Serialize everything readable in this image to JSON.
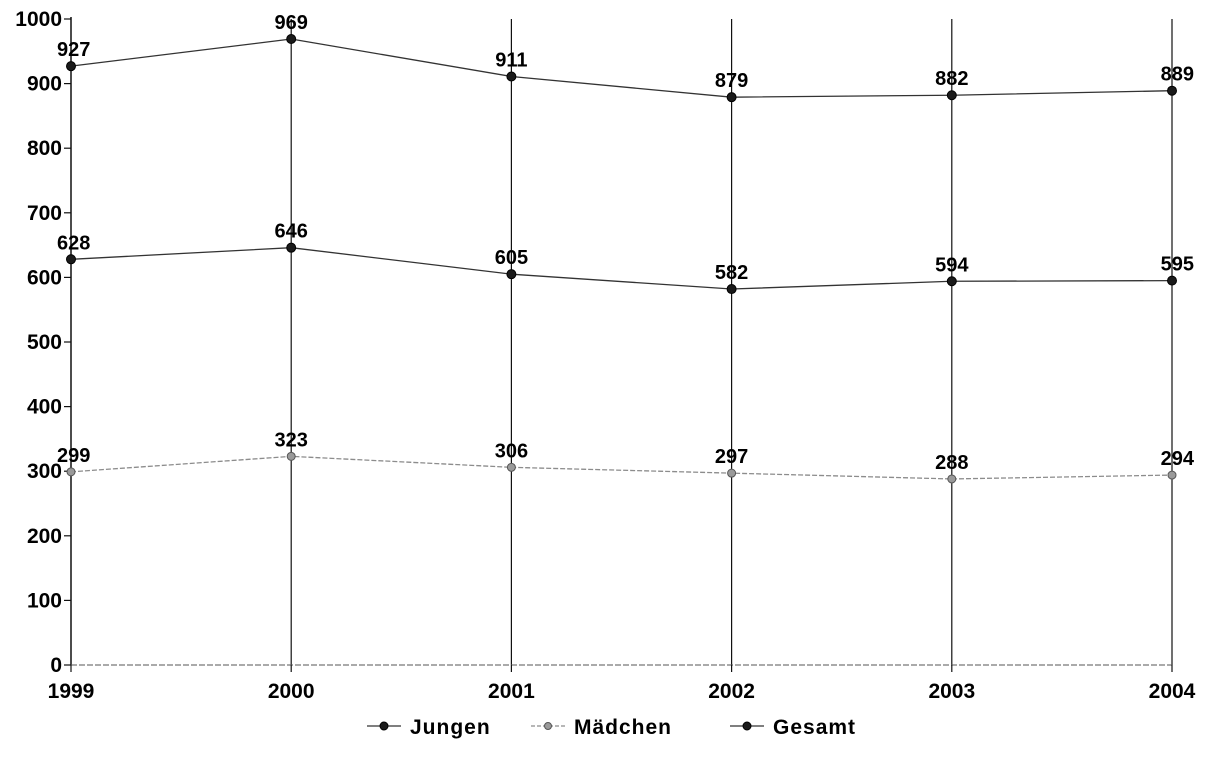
{
  "chart_data": {
    "type": "line",
    "title": "",
    "xlabel": "",
    "ylabel": "",
    "categories": [
      "1999",
      "2000",
      "2001",
      "2002",
      "2003",
      "2004"
    ],
    "ylim": [
      0,
      1000
    ],
    "y_ticks": [
      "0",
      "100",
      "200",
      "300",
      "400",
      "500",
      "600",
      "700",
      "800",
      "900",
      "1000"
    ],
    "grid": "vertical",
    "legend_position": "bottom-center",
    "series": [
      {
        "name": "Jungen",
        "values": [
          628,
          646,
          605,
          582,
          594,
          595
        ],
        "labels": [
          "628",
          "646",
          "605",
          "582",
          "594",
          "595"
        ],
        "color": "#333333",
        "marker": "#1a1a1a",
        "dashed": false
      },
      {
        "name": "Mädchen",
        "values": [
          299,
          323,
          306,
          297,
          288,
          294
        ],
        "labels": [
          "299",
          "323",
          "306",
          "297",
          "288",
          "294"
        ],
        "color": "#8c8c8c",
        "marker": "#9a9a9a",
        "dashed": true
      },
      {
        "name": "Gesamt",
        "values": [
          927,
          969,
          911,
          879,
          882,
          889
        ],
        "labels": [
          "927",
          "969",
          "911",
          "879",
          "882",
          "889"
        ],
        "color": "#333333",
        "marker": "#1a1a1a",
        "dashed": false
      }
    ]
  }
}
